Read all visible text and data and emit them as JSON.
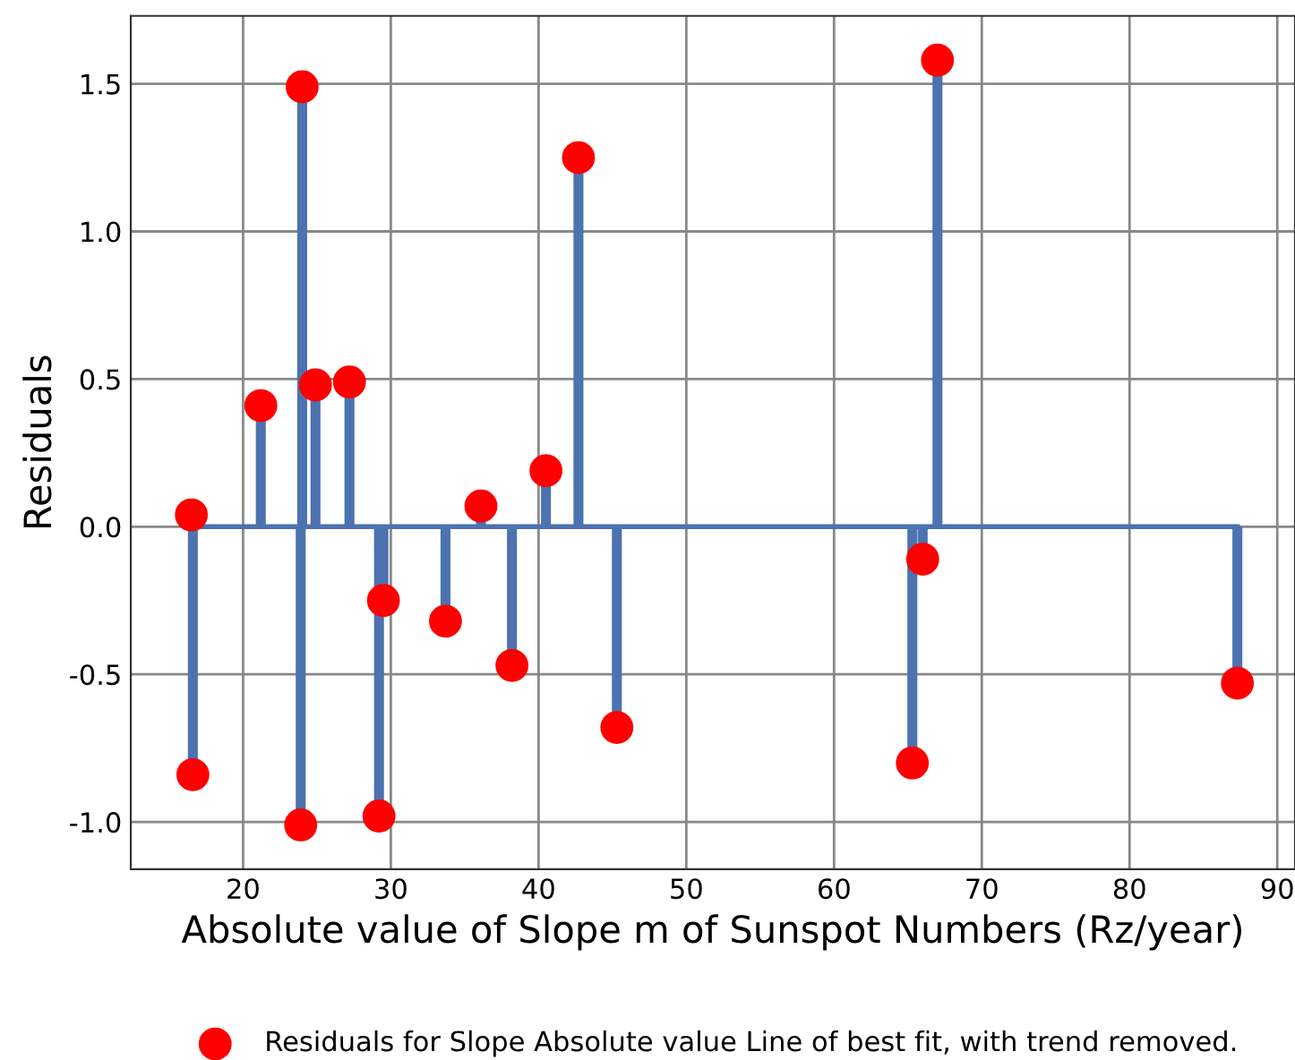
{
  "chart_data": {
    "type": "lollipop",
    "xlabel": "Absolute value of Slope m of Sunspot Numbers (Rz/year)",
    "ylabel": "Residuals",
    "x": [
      16.5,
      16.6,
      21.2,
      24.0,
      23.9,
      24.9,
      27.2,
      29.2,
      29.5,
      33.7,
      36.1,
      38.2,
      40.5,
      42.7,
      45.3,
      65.3,
      66.0,
      67.0,
      87.3
    ],
    "series": [
      {
        "name": "Residuals for Slope Absolute value Line of best fit, with trend removed.",
        "color": "#ff0000",
        "values": [
          0.04,
          -0.84,
          0.41,
          1.49,
          -1.01,
          0.48,
          0.49,
          -0.98,
          -0.25,
          -0.32,
          0.07,
          -0.47,
          0.19,
          1.25,
          -0.68,
          -0.8,
          -0.11,
          1.58,
          -0.53
        ]
      }
    ],
    "xlim": [
      12.4,
      91.2
    ],
    "xticks": [
      20,
      30,
      40,
      50,
      60,
      70,
      80,
      90
    ],
    "ylim": [
      -1.16,
      1.73
    ],
    "yticks": [
      {
        "value": -1.0,
        "label": "-1.0"
      },
      {
        "value": -0.5,
        "label": "-0.5"
      },
      {
        "value": 0.0,
        "label": "0.0"
      },
      {
        "value": 0.5,
        "label": "0.5"
      },
      {
        "value": 1.0,
        "label": "1.0"
      },
      {
        "value": 1.5,
        "label": "1.5"
      }
    ],
    "ref_lines": [
      {
        "axis": "y",
        "value": 0,
        "color": "#4c72b0"
      }
    ],
    "grid": true,
    "legend": "bottom",
    "marker": "circle"
  }
}
